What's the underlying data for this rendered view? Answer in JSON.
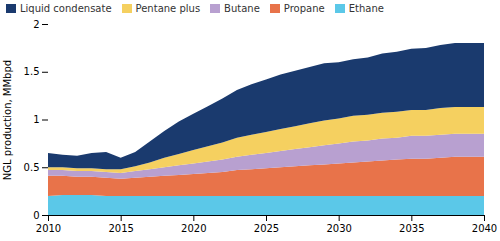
{
  "chart_data": {
    "type": "area",
    "stacked": true,
    "x": [
      2010,
      2011,
      2012,
      2013,
      2014,
      2015,
      2016,
      2017,
      2018,
      2019,
      2020,
      2021,
      2022,
      2023,
      2024,
      2025,
      2026,
      2027,
      2028,
      2029,
      2030,
      2031,
      2032,
      2033,
      2034,
      2035,
      2036,
      2037,
      2038,
      2039,
      2040
    ],
    "series": [
      {
        "name": "Ethane",
        "color": "#5bc8e8",
        "values": [
          0.2,
          0.21,
          0.21,
          0.21,
          0.2,
          0.2,
          0.2,
          0.2,
          0.2,
          0.2,
          0.2,
          0.2,
          0.2,
          0.2,
          0.2,
          0.2,
          0.2,
          0.2,
          0.2,
          0.2,
          0.2,
          0.2,
          0.2,
          0.2,
          0.2,
          0.2,
          0.2,
          0.2,
          0.2,
          0.2,
          0.2
        ]
      },
      {
        "name": "Propane",
        "color": "#e8734a",
        "values": [
          0.21,
          0.2,
          0.19,
          0.19,
          0.19,
          0.18,
          0.19,
          0.2,
          0.21,
          0.22,
          0.23,
          0.24,
          0.25,
          0.27,
          0.28,
          0.29,
          0.3,
          0.31,
          0.32,
          0.33,
          0.34,
          0.35,
          0.36,
          0.37,
          0.38,
          0.39,
          0.39,
          0.4,
          0.41,
          0.41,
          0.41
        ]
      },
      {
        "name": "Butane",
        "color": "#b8a0d0",
        "values": [
          0.06,
          0.06,
          0.06,
          0.06,
          0.06,
          0.06,
          0.07,
          0.08,
          0.09,
          0.1,
          0.11,
          0.12,
          0.13,
          0.14,
          0.15,
          0.16,
          0.17,
          0.18,
          0.19,
          0.2,
          0.21,
          0.22,
          0.22,
          0.23,
          0.23,
          0.24,
          0.24,
          0.24,
          0.24,
          0.24,
          0.24
        ]
      },
      {
        "name": "Pentane plus",
        "color": "#f5d060",
        "values": [
          0.03,
          0.03,
          0.03,
          0.03,
          0.03,
          0.04,
          0.05,
          0.07,
          0.1,
          0.12,
          0.14,
          0.16,
          0.18,
          0.2,
          0.21,
          0.22,
          0.23,
          0.24,
          0.25,
          0.26,
          0.26,
          0.27,
          0.27,
          0.27,
          0.27,
          0.27,
          0.27,
          0.28,
          0.28,
          0.28,
          0.28
        ]
      },
      {
        "name": "Liquid condensate",
        "color": "#1a3a6e",
        "values": [
          0.15,
          0.13,
          0.13,
          0.16,
          0.18,
          0.12,
          0.15,
          0.22,
          0.28,
          0.34,
          0.38,
          0.42,
          0.46,
          0.5,
          0.53,
          0.55,
          0.57,
          0.58,
          0.59,
          0.6,
          0.59,
          0.59,
          0.6,
          0.62,
          0.63,
          0.64,
          0.65,
          0.66,
          0.67,
          0.67,
          0.67
        ]
      }
    ],
    "ylabel": "NGL production, MMbpd",
    "xlim": [
      2010,
      2040
    ],
    "xticks": [
      2010,
      2015,
      2020,
      2025,
      2030,
      2035,
      2040
    ],
    "ylim": [
      0,
      2.0
    ],
    "yticks": [
      0,
      0.5,
      1,
      1.5,
      2
    ],
    "legend": "upper left"
  }
}
